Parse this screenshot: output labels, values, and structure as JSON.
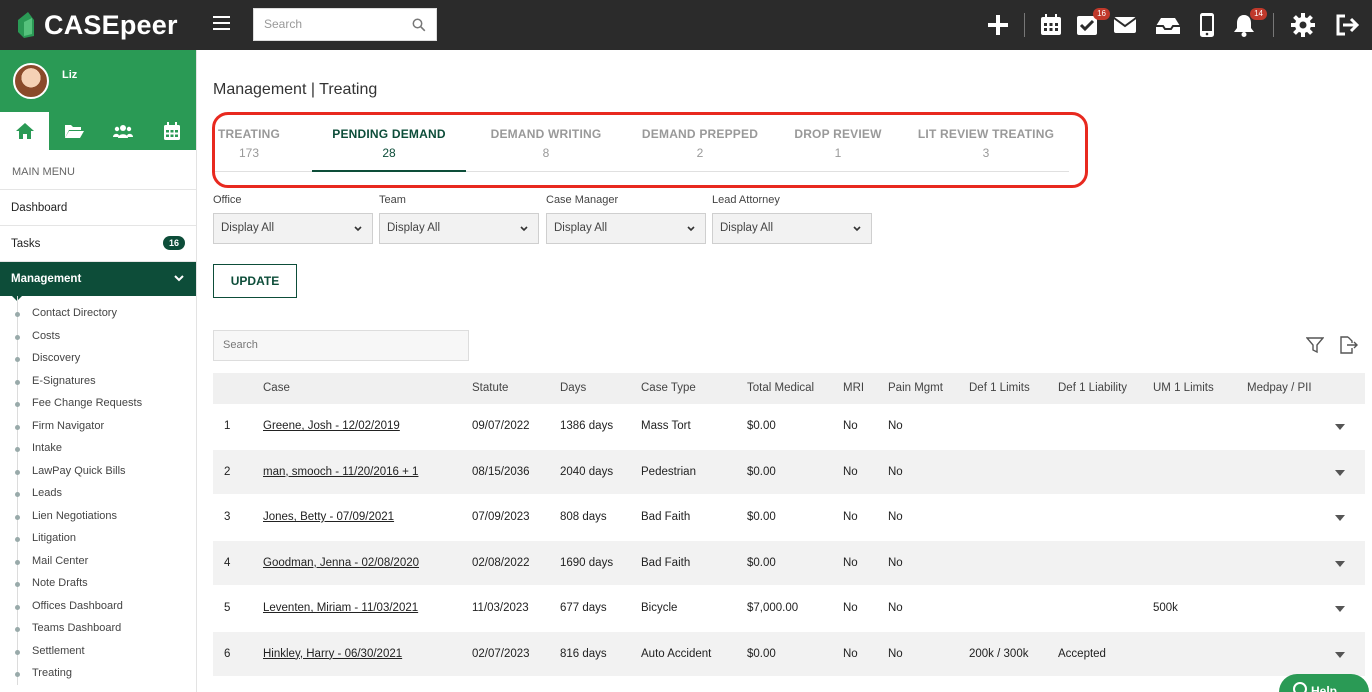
{
  "app": {
    "logo_text": "CASEpeer"
  },
  "topbar": {
    "search_placeholder": "Search",
    "tasks_badge": "16",
    "notifications_badge": "14"
  },
  "sidebar": {
    "user_name": "Liz",
    "main_menu_label": "MAIN MENU",
    "dashboard": "Dashboard",
    "tasks": "Tasks",
    "tasks_count": "16",
    "management": "Management",
    "submenu": [
      "Contact Directory",
      "Costs",
      "Discovery",
      "E-Signatures",
      "Fee Change Requests",
      "Firm Navigator",
      "Intake",
      "LawPay Quick Bills",
      "Leads",
      "Lien Negotiations",
      "Litigation",
      "Mail Center",
      "Note Drafts",
      "Offices Dashboard",
      "Teams Dashboard",
      "Settlement",
      "Treating"
    ]
  },
  "main": {
    "title": "Management | Treating",
    "tabs": [
      {
        "label": "TREATING",
        "count": "173"
      },
      {
        "label": "PENDING DEMAND",
        "count": "28"
      },
      {
        "label": "DEMAND WRITING",
        "count": "8"
      },
      {
        "label": "DEMAND PREPPED",
        "count": "2"
      },
      {
        "label": "DROP REVIEW",
        "count": "1"
      },
      {
        "label": "LIT REVIEW TREATING",
        "count": "3"
      }
    ],
    "active_tab": 1,
    "filters": [
      {
        "label": "Office",
        "value": "Display All"
      },
      {
        "label": "Team",
        "value": "Display All"
      },
      {
        "label": "Case Manager",
        "value": "Display All"
      },
      {
        "label": "Lead Attorney",
        "value": "Display All"
      }
    ],
    "update_label": "UPDATE",
    "table_search_placeholder": "Search",
    "columns": [
      "Case",
      "Statute",
      "Days",
      "Case Type",
      "Total Medical",
      "MRI",
      "Pain Mgmt",
      "Def 1 Limits",
      "Def 1 Liability",
      "UM 1 Limits",
      "Medpay / PII"
    ],
    "rows": [
      {
        "num": "1",
        "case": "Greene, Josh - 12/02/2019",
        "statute": "09/07/2022",
        "days": "1386 days",
        "type": "Mass Tort",
        "medical": "$0.00",
        "mri": "No",
        "pain": "No",
        "def_limits": "",
        "def_liability": "",
        "um_limits": ""
      },
      {
        "num": "2",
        "case": "man, smooch - 11/20/2016 + 1",
        "statute": "08/15/2036",
        "days": "2040 days",
        "type": "Pedestrian",
        "medical": "$0.00",
        "mri": "No",
        "pain": "No",
        "def_limits": "",
        "def_liability": "",
        "um_limits": ""
      },
      {
        "num": "3",
        "case": "Jones, Betty - 07/09/2021",
        "statute": "07/09/2023",
        "days": "808 days",
        "type": "Bad Faith",
        "medical": "$0.00",
        "mri": "No",
        "pain": "No",
        "def_limits": "",
        "def_liability": "",
        "um_limits": ""
      },
      {
        "num": "4",
        "case": "Goodman, Jenna - 02/08/2020",
        "statute": "02/08/2022",
        "days": "1690 days",
        "type": "Bad Faith",
        "medical": "$0.00",
        "mri": "No",
        "pain": "No",
        "def_limits": "",
        "def_liability": "",
        "um_limits": ""
      },
      {
        "num": "5",
        "case": "Leventen, Miriam - 11/03/2021",
        "statute": "11/03/2023",
        "days": "677 days",
        "type": "Bicycle",
        "medical": "$7,000.00",
        "mri": "No",
        "pain": "No",
        "def_limits": "",
        "def_liability": "",
        "um_limits": "500k"
      },
      {
        "num": "6",
        "case": "Hinkley, Harry - 06/30/2021",
        "statute": "02/07/2023",
        "days": "816 days",
        "type": "Auto Accident",
        "medical": "$0.00",
        "mri": "No",
        "pain": "No",
        "def_limits": "200k / 300k",
        "def_liability": "Accepted",
        "um_limits": ""
      }
    ],
    "help_label": "Help"
  },
  "colors": {
    "brand_green": "#2a9a55",
    "dark_green": "#0d4d39",
    "topbar": "#2b2b2b",
    "highlight": "#e8291f"
  }
}
